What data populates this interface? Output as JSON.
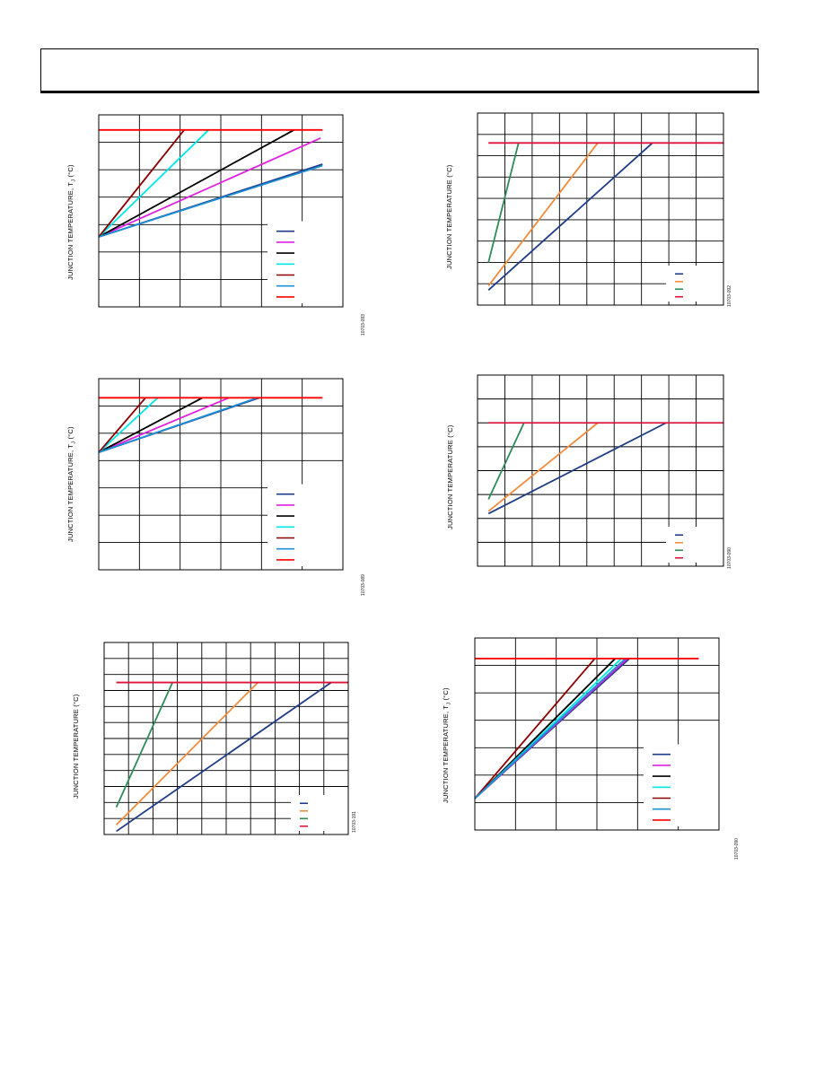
{
  "charts": [
    {
      "id": "chart-1",
      "ylabel": "JUNCTION TEMPERATURE, TJ (°C)",
      "ylabel_main": "JUNCTION TEMPERATURE, T",
      "ylabel_sub": "J",
      "ylabel_unit": " (°C)",
      "figcode": "10703-093",
      "chart_data": {
        "type": "line",
        "grid": true,
        "xlim": [
          0,
          6
        ],
        "ylim": [
          0,
          7
        ],
        "x_divisions": 6,
        "y_divisions": 7,
        "legend": "bottom-right",
        "series": [
          {
            "color": "#1f3c88",
            "points": [
              [
                0,
                2.55
              ],
              [
                5.5,
                5.2
              ]
            ]
          },
          {
            "color": "#e020e0",
            "points": [
              [
                0,
                2.55
              ],
              [
                5.45,
                6.15
              ]
            ]
          },
          {
            "color": "#000000",
            "points": [
              [
                0,
                2.55
              ],
              [
                4.8,
                6.45
              ]
            ]
          },
          {
            "color": "#00e8e8",
            "points": [
              [
                0,
                2.55
              ],
              [
                2.7,
                6.45
              ]
            ]
          },
          {
            "color": "#8b0000",
            "points": [
              [
                0,
                2.55
              ],
              [
                2.1,
                6.45
              ]
            ]
          },
          {
            "color": "#1e90d6",
            "points": [
              [
                0,
                2.55
              ],
              [
                5.5,
                5.15
              ]
            ]
          },
          {
            "color": "#ff0000",
            "points": [
              [
                0,
                6.45
              ],
              [
                5.5,
                6.45
              ]
            ]
          }
        ]
      }
    },
    {
      "id": "chart-2",
      "ylabel": "JUNCTION TEMPERATURE (°C)",
      "figcode": "10703-092",
      "chart_data": {
        "type": "line",
        "grid": true,
        "xlim": [
          0,
          9
        ],
        "ylim": [
          0,
          9
        ],
        "x_divisions": 9,
        "y_divisions": 9,
        "legend": "bottom-right",
        "series": [
          {
            "color": "#1f3c88",
            "points": [
              [
                0.4,
                0.7
              ],
              [
                6.4,
                7.6
              ]
            ]
          },
          {
            "color": "#f08c3c",
            "points": [
              [
                0.4,
                0.9
              ],
              [
                4.4,
                7.6
              ]
            ]
          },
          {
            "color": "#2e8b57",
            "points": [
              [
                0.4,
                2.0
              ],
              [
                1.5,
                7.6
              ]
            ]
          },
          {
            "color": "#dc143c",
            "points": [
              [
                0.4,
                7.6
              ],
              [
                9.0,
                7.6
              ]
            ]
          }
        ]
      }
    },
    {
      "id": "chart-3",
      "ylabel": "JUNCTION TEMPERATURE, TJ (°C)",
      "ylabel_main": "JUNCTION TEMPERATURE, T",
      "ylabel_sub": "J",
      "ylabel_unit": " (°C)",
      "figcode": "10703-089",
      "chart_data": {
        "type": "line",
        "grid": true,
        "xlim": [
          0,
          6
        ],
        "ylim": [
          0,
          7
        ],
        "x_divisions": 6,
        "y_divisions": 7,
        "legend": "bottom-right",
        "series": [
          {
            "color": "#1f3c88",
            "points": [
              [
                0,
                4.3
              ],
              [
                3.95,
                6.3
              ]
            ]
          },
          {
            "color": "#e020e0",
            "points": [
              [
                0,
                4.3
              ],
              [
                3.2,
                6.3
              ]
            ]
          },
          {
            "color": "#000000",
            "points": [
              [
                0,
                4.3
              ],
              [
                2.55,
                6.3
              ]
            ]
          },
          {
            "color": "#00e8e8",
            "points": [
              [
                0,
                4.3
              ],
              [
                1.45,
                6.3
              ]
            ]
          },
          {
            "color": "#8b0000",
            "points": [
              [
                0,
                4.3
              ],
              [
                1.15,
                6.3
              ]
            ]
          },
          {
            "color": "#1e90d6",
            "points": [
              [
                0,
                4.3
              ],
              [
                3.9,
                6.3
              ]
            ]
          },
          {
            "color": "#ff0000",
            "points": [
              [
                0,
                6.3
              ],
              [
                5.5,
                6.3
              ]
            ]
          }
        ]
      }
    },
    {
      "id": "chart-4",
      "ylabel": "JUNCTION TEMPERATURE (°C)",
      "figcode": "10703-090",
      "chart_data": {
        "type": "line",
        "grid": true,
        "xlim": [
          0,
          9
        ],
        "ylim": [
          0,
          8
        ],
        "x_divisions": 9,
        "y_divisions": 8,
        "legend": "bottom-right",
        "series": [
          {
            "color": "#1f3c88",
            "points": [
              [
                0.4,
                2.2
              ],
              [
                6.9,
                6.0
              ]
            ]
          },
          {
            "color": "#f08c3c",
            "points": [
              [
                0.4,
                2.3
              ],
              [
                4.4,
                6.0
              ]
            ]
          },
          {
            "color": "#2e8b57",
            "points": [
              [
                0.4,
                2.8
              ],
              [
                1.7,
                6.0
              ]
            ]
          },
          {
            "color": "#dc143c",
            "points": [
              [
                0.4,
                6.0
              ],
              [
                9.0,
                6.0
              ]
            ]
          }
        ]
      }
    },
    {
      "id": "chart-5",
      "ylabel": "JUNCTION TEMPERATURE (°C)",
      "figcode": "10703-191",
      "chart_data": {
        "type": "line",
        "grid": true,
        "xlim": [
          0,
          10
        ],
        "ylim": [
          0,
          12
        ],
        "x_divisions": 10,
        "y_divisions": 12,
        "legend": "bottom-right",
        "series": [
          {
            "color": "#1f3c88",
            "points": [
              [
                0.5,
                0.2
              ],
              [
                9.3,
                9.5
              ]
            ]
          },
          {
            "color": "#f08c3c",
            "points": [
              [
                0.5,
                0.6
              ],
              [
                6.3,
                9.5
              ]
            ]
          },
          {
            "color": "#2e8b57",
            "points": [
              [
                0.5,
                1.7
              ],
              [
                2.8,
                9.5
              ]
            ]
          },
          {
            "color": "#dc143c",
            "points": [
              [
                0.5,
                9.5
              ],
              [
                10.0,
                9.5
              ]
            ]
          }
        ]
      }
    },
    {
      "id": "chart-6",
      "ylabel": "JUNCTION TEMPERATURE, TJ (°C)",
      "ylabel_main": "JUNCTION TEMPERATURE, T",
      "ylabel_sub": "J",
      "ylabel_unit": " (°C)",
      "figcode": "10703-090",
      "chart_data": {
        "type": "line",
        "grid": true,
        "xlim": [
          0,
          6
        ],
        "ylim": [
          0,
          7
        ],
        "x_divisions": 6,
        "y_divisions": 7,
        "legend": "bottom-right",
        "series": [
          {
            "color": "#1f3c88",
            "points": [
              [
                0,
                1.15
              ],
              [
                3.8,
                6.25
              ]
            ]
          },
          {
            "color": "#e020e0",
            "points": [
              [
                0,
                1.15
              ],
              [
                3.75,
                6.25
              ]
            ]
          },
          {
            "color": "#000000",
            "points": [
              [
                0,
                1.15
              ],
              [
                3.45,
                6.25
              ]
            ]
          },
          {
            "color": "#00e8e8",
            "points": [
              [
                0,
                1.15
              ],
              [
                3.6,
                6.25
              ]
            ]
          },
          {
            "color": "#8b0000",
            "points": [
              [
                0,
                1.15
              ],
              [
                2.95,
                6.25
              ]
            ]
          },
          {
            "color": "#1e90d6",
            "points": [
              [
                0,
                1.15
              ],
              [
                3.7,
                6.25
              ]
            ]
          },
          {
            "color": "#ff0000",
            "points": [
              [
                0,
                6.25
              ],
              [
                5.5,
                6.25
              ]
            ]
          }
        ]
      }
    }
  ]
}
